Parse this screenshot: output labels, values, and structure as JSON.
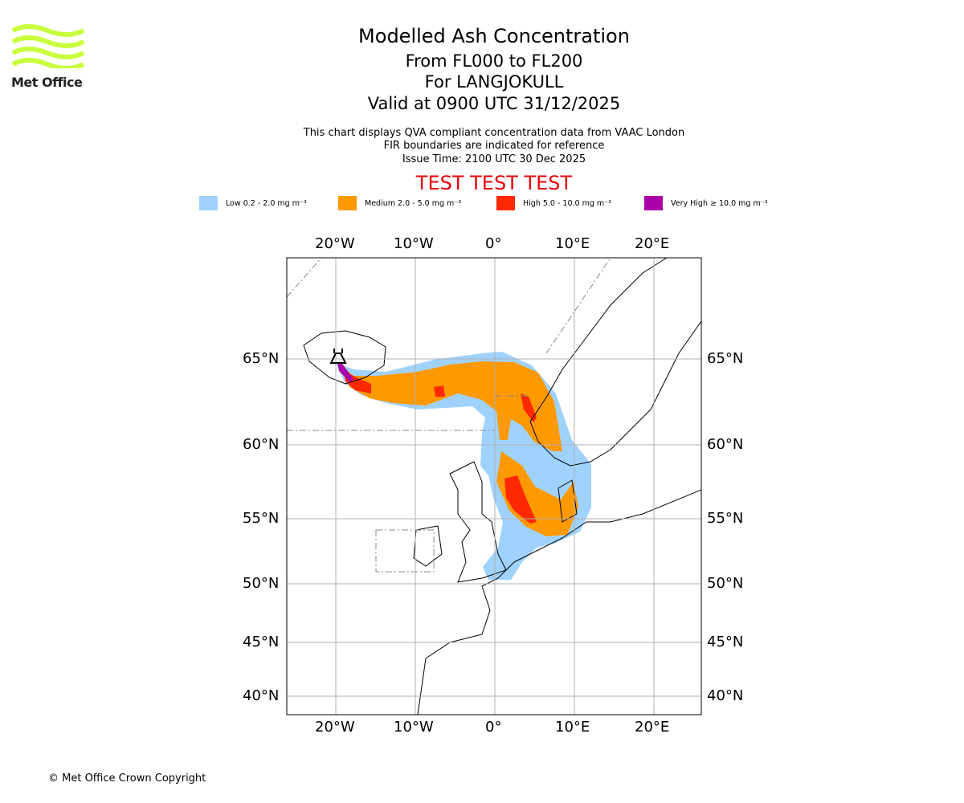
{
  "logo": {
    "text": "Met Office",
    "color": "#c8ff3c"
  },
  "title": {
    "main": "Modelled Ash Concentration",
    "levels": "From FL000 to FL200",
    "volcano": "For LANGJOKULL",
    "valid": "Valid at 0900 UTC 31/12/2025"
  },
  "subtitle": {
    "line1": "This chart displays QVA compliant concentration data from VAAC London",
    "line2": "FIR boundaries are indicated for reference",
    "line3": "Issue Time: 2100 UTC 30 Dec 2025"
  },
  "test_banner": {
    "text": "TEST TEST TEST",
    "color": "#e8000b"
  },
  "legend": [
    {
      "label": "Low 0.2 - 2.0 mg m⁻³",
      "color": "#a0d2ff"
    },
    {
      "label": "Medium 2.0 - 5.0 mg m⁻³",
      "color": "#ff9900"
    },
    {
      "label": "High 5.0 - 10.0 mg m⁻³",
      "color": "#ff2800"
    },
    {
      "label": "Very High ≥ 10.0 mg m⁻³",
      "color": "#aa00aa"
    }
  ],
  "map": {
    "lon_ticks": [
      "20°W",
      "10°W",
      "0°",
      "10°E",
      "20°E"
    ],
    "lat_ticks": [
      "65°N",
      "60°N",
      "55°N",
      "50°N",
      "45°N",
      "40°N"
    ],
    "volcano_marker": "volcano-icon"
  },
  "footer": {
    "copyright": "© Met Office Crown Copyright"
  }
}
